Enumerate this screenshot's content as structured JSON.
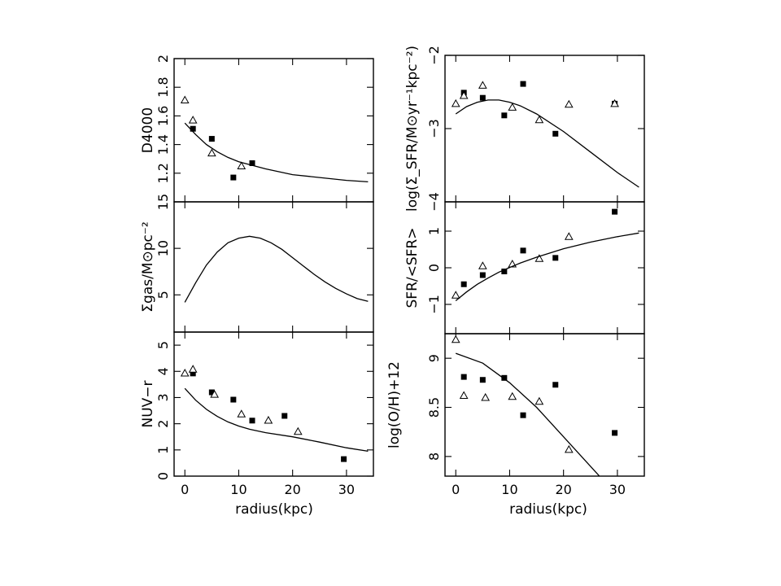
{
  "figure": {
    "xlabel": "radius(kpc)",
    "colors": {
      "ink": "#000000",
      "background": "#ffffff"
    },
    "markers": {
      "filled": "filled-square",
      "open": "open-triangle"
    }
  },
  "chart_data": [
    {
      "id": "d4000",
      "type": "scatter",
      "ylabel": "D4000",
      "xlim": [
        -2,
        35
      ],
      "ylim": [
        1.0,
        2.0
      ],
      "xticks": [
        0,
        10,
        20,
        30
      ],
      "yticks": [
        1.2,
        1.4,
        1.6,
        1.8,
        2
      ],
      "ytick_labels": [
        "1.2",
        "1.4",
        "1.6",
        "1.8",
        "2"
      ],
      "series": [
        {
          "marker": "filled-square",
          "x": [
            1.5,
            5,
            9,
            12.5
          ],
          "y": [
            1.51,
            1.44,
            1.17,
            1.27
          ]
        },
        {
          "marker": "open-triangle",
          "x": [
            0,
            1.5,
            5,
            10.5
          ],
          "y": [
            1.71,
            1.57,
            1.34,
            1.25
          ]
        },
        {
          "marker": "line",
          "x": [
            0,
            2,
            4,
            6,
            8,
            10,
            12,
            15,
            20,
            25,
            30,
            34
          ],
          "y": [
            1.55,
            1.47,
            1.4,
            1.35,
            1.31,
            1.28,
            1.26,
            1.23,
            1.19,
            1.17,
            1.15,
            1.14
          ]
        }
      ]
    },
    {
      "id": "sigma_sfr",
      "type": "scatter",
      "ylabel": "log(Σ_SFR/M⊙yr⁻¹kpc⁻²)",
      "xlim": [
        -2,
        35
      ],
      "ylim": [
        -4.0,
        -2.0
      ],
      "xticks": [
        0,
        10,
        20,
        30
      ],
      "yticks": [
        -4,
        -3,
        -2
      ],
      "ytick_labels": [
        "−4",
        "−3",
        "−2"
      ],
      "series": [
        {
          "marker": "filled-square",
          "x": [
            1.5,
            5,
            9,
            12.5,
            18.5,
            29.5
          ],
          "y": [
            -2.51,
            -2.58,
            -2.82,
            -2.39,
            -3.07,
            -2.66
          ]
        },
        {
          "marker": "open-triangle",
          "x": [
            0,
            1.5,
            5,
            10.5,
            15.5,
            21,
            29.5
          ],
          "y": [
            -2.66,
            -2.55,
            -2.41,
            -2.71,
            -2.88,
            -2.67,
            -2.66
          ]
        },
        {
          "marker": "line",
          "x": [
            0,
            2,
            4,
            6,
            8,
            10,
            12,
            15,
            20,
            25,
            30,
            34
          ],
          "y": [
            -2.8,
            -2.7,
            -2.64,
            -2.61,
            -2.61,
            -2.64,
            -2.69,
            -2.8,
            -3.04,
            -3.32,
            -3.6,
            -3.8
          ]
        }
      ]
    },
    {
      "id": "sigma_gas",
      "type": "line",
      "ylabel": "Σgas/M⊙pc⁻²",
      "xlim": [
        -2,
        35
      ],
      "ylim": [
        1.0,
        15.0
      ],
      "xticks": [
        0,
        10,
        20,
        30
      ],
      "yticks": [
        5,
        10,
        15
      ],
      "ytick_labels": [
        "5",
        "10",
        "15"
      ],
      "series": [
        {
          "marker": "line",
          "x": [
            0,
            2,
            4,
            6,
            8,
            10,
            12,
            14,
            16,
            18,
            20,
            22,
            24,
            26,
            28,
            30,
            32,
            34
          ],
          "y": [
            4.2,
            6.3,
            8.2,
            9.6,
            10.6,
            11.1,
            11.3,
            11.1,
            10.6,
            9.9,
            9.0,
            8.1,
            7.2,
            6.4,
            5.7,
            5.1,
            4.6,
            4.3
          ]
        }
      ]
    },
    {
      "id": "sfr_ratio",
      "type": "scatter",
      "ylabel": "SFR/<SFR>",
      "xlim": [
        -2,
        35
      ],
      "ylim": [
        -1.8,
        1.8
      ],
      "xticks": [
        0,
        10,
        20,
        30
      ],
      "yticks": [
        -1,
        0,
        1
      ],
      "ytick_labels": [
        "−1",
        "0",
        "1"
      ],
      "series": [
        {
          "marker": "filled-square",
          "x": [
            1.5,
            5,
            9,
            12.5,
            18.5,
            29.5
          ],
          "y": [
            -0.45,
            -0.2,
            -0.1,
            0.47,
            0.27,
            1.53
          ]
        },
        {
          "marker": "open-triangle",
          "x": [
            0,
            5,
            10.5,
            15.5,
            21
          ],
          "y": [
            -0.75,
            0.05,
            0.1,
            0.25,
            0.85
          ]
        },
        {
          "marker": "line",
          "x": [
            0,
            2,
            4,
            6,
            8,
            10,
            12,
            15,
            20,
            25,
            30,
            34
          ],
          "y": [
            -0.9,
            -0.66,
            -0.45,
            -0.28,
            -0.12,
            0.01,
            0.13,
            0.29,
            0.52,
            0.7,
            0.85,
            0.95
          ]
        }
      ]
    },
    {
      "id": "nuv_r",
      "type": "scatter",
      "ylabel": "NUV−r",
      "xlim": [
        -2,
        35
      ],
      "ylim": [
        0.0,
        5.5
      ],
      "xticks": [
        0,
        10,
        20,
        30
      ],
      "xtick_labels": [
        "0",
        "10",
        "20",
        "30"
      ],
      "yticks": [
        0,
        1,
        2,
        3,
        4,
        5
      ],
      "ytick_labels": [
        "0",
        "1",
        "2",
        "3",
        "4",
        "5"
      ],
      "series": [
        {
          "marker": "filled-square",
          "x": [
            1.5,
            5,
            9,
            12.5,
            18.5,
            29.5
          ],
          "y": [
            3.92,
            3.2,
            2.92,
            2.12,
            2.3,
            0.65
          ]
        },
        {
          "marker": "open-triangle",
          "x": [
            0,
            1.5,
            5.5,
            10.5,
            15.5,
            21
          ],
          "y": [
            3.93,
            4.08,
            3.12,
            2.37,
            2.13,
            1.7
          ]
        },
        {
          "marker": "line",
          "x": [
            0,
            2,
            4,
            6,
            8,
            10,
            12,
            15,
            20,
            25,
            30,
            34
          ],
          "y": [
            3.35,
            2.9,
            2.55,
            2.28,
            2.07,
            1.91,
            1.79,
            1.66,
            1.5,
            1.3,
            1.08,
            0.95
          ]
        }
      ]
    },
    {
      "id": "oh",
      "type": "scatter",
      "ylabel": "log(O/H)+12",
      "xlim": [
        -2,
        35
      ],
      "ylim": [
        7.8,
        9.25
      ],
      "xticks": [
        0,
        10,
        20,
        30
      ],
      "xtick_labels": [
        "0",
        "10",
        "20",
        "30"
      ],
      "yticks": [
        8,
        8.5,
        9
      ],
      "ytick_labels": [
        "8",
        "8.5",
        "9"
      ],
      "series": [
        {
          "marker": "filled-square",
          "x": [
            1.5,
            5,
            9,
            12.5,
            18.5,
            29.5
          ],
          "y": [
            8.81,
            8.78,
            8.8,
            8.42,
            8.73,
            8.24
          ]
        },
        {
          "marker": "open-triangle",
          "x": [
            0,
            1.5,
            5.5,
            10.5,
            15.5,
            21
          ],
          "y": [
            9.19,
            8.62,
            8.6,
            8.61,
            8.56,
            8.07
          ]
        },
        {
          "marker": "line",
          "x": [
            0,
            5,
            10,
            15,
            20,
            25,
            27
          ],
          "y": [
            9.05,
            8.95,
            8.75,
            8.5,
            8.2,
            7.9,
            7.78
          ]
        }
      ]
    }
  ]
}
